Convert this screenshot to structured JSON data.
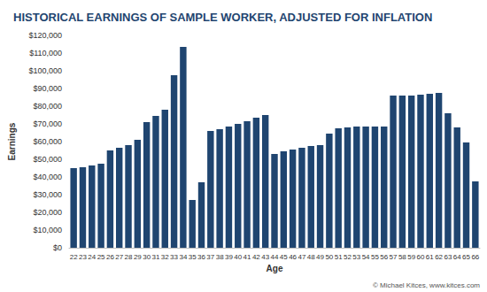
{
  "chart_data": {
    "type": "bar",
    "title": "HISTORICAL EARNINGS OF SAMPLE WORKER, ADJUSTED FOR INFLATION",
    "x_label": "Age",
    "y_label": "Earnings",
    "annotations": [
      "© Michael Kitces, www.kitces.com"
    ],
    "categories": [
      "22",
      "23",
      "24",
      "25",
      "26",
      "27",
      "28",
      "29",
      "30",
      "31",
      "32",
      "33",
      "34",
      "35",
      "36",
      "37",
      "38",
      "39",
      "40",
      "41",
      "42",
      "43",
      "44",
      "45",
      "46",
      "47",
      "48",
      "49",
      "50",
      "51",
      "52",
      "53",
      "54",
      "55",
      "56",
      "57",
      "58",
      "59",
      "60",
      "61",
      "62",
      "63",
      "64",
      "65",
      "66"
    ],
    "values": [
      45000,
      45500,
      46500,
      47500,
      55000,
      56500,
      58000,
      61000,
      71000,
      74500,
      78000,
      97500,
      113500,
      27000,
      37000,
      66000,
      67000,
      68500,
      70000,
      71500,
      73500,
      75000,
      53000,
      54500,
      55500,
      56500,
      57500,
      58000,
      64500,
      67500,
      68000,
      68500,
      68500,
      68500,
      68500,
      86000,
      86000,
      86000,
      86500,
      87000,
      87500,
      76000,
      68000,
      59500,
      37500
    ],
    "color": "#1f4570",
    "ylim": [
      0,
      120000
    ],
    "yticks": [
      {
        "value": 0,
        "label": "$0"
      },
      {
        "value": 10000,
        "label": "$10,000"
      },
      {
        "value": 20000,
        "label": "$20,000"
      },
      {
        "value": 30000,
        "label": "$30,000"
      },
      {
        "value": 40000,
        "label": "$40,000"
      },
      {
        "value": 50000,
        "label": "$50,000"
      },
      {
        "value": 60000,
        "label": "$60,000"
      },
      {
        "value": 70000,
        "label": "$70,000"
      },
      {
        "value": 80000,
        "label": "$80,000"
      },
      {
        "value": 90000,
        "label": "$90,000"
      },
      {
        "value": 100000,
        "label": "$100,000"
      },
      {
        "value": 110000,
        "label": "$110,000"
      },
      {
        "value": 120000,
        "label": "$120,000"
      }
    ],
    "grid": false
  }
}
